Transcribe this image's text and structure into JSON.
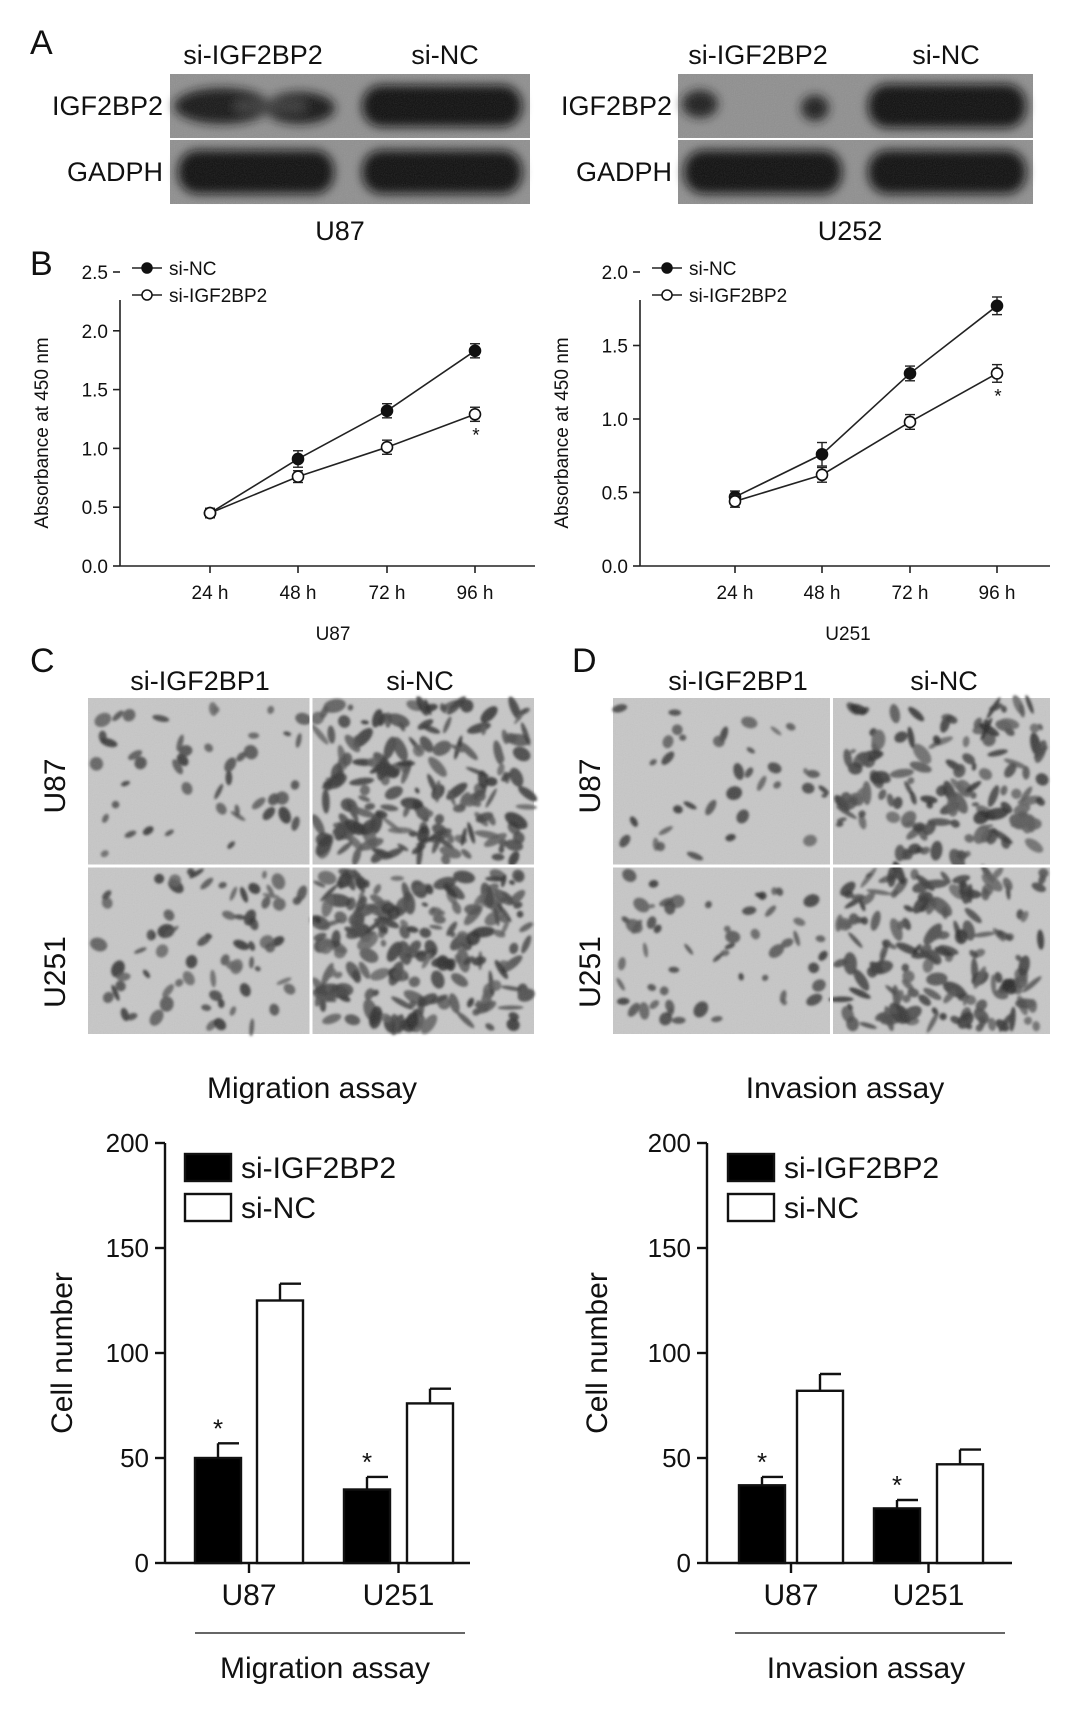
{
  "panel_labels": {
    "a": "A",
    "b": "B",
    "c": "C",
    "d": "D"
  },
  "panel_a": {
    "blots": [
      {
        "cell_line": "U87",
        "lanes": [
          "si-IGF2BP2",
          "si-NC"
        ],
        "rows": [
          "IGF2BP2",
          "GADPH"
        ]
      },
      {
        "cell_line": "U252",
        "lanes": [
          "si-IGF2BP2",
          "si-NC"
        ],
        "rows": [
          "IGF2BP2",
          "GADPH"
        ]
      }
    ]
  },
  "panel_cd": {
    "panels": [
      {
        "lanes": [
          "si-IGF2BP1",
          "si-NC"
        ],
        "rows": [
          "U87",
          "U251"
        ],
        "caption": "Invasion assay"
      }
    ]
  },
  "chart_data": [
    {
      "type": "line",
      "cell_line": "U87",
      "ylabel": "Absorbance at 450 nm",
      "x": [
        "24 h",
        "48 h",
        "72 h",
        "96 h"
      ],
      "ylim": [
        0,
        2.5
      ],
      "yticks": [
        "0.0",
        "0.5",
        "1.0",
        "1.5",
        "2.0",
        "2.5"
      ],
      "series": [
        {
          "name": "si-NC",
          "marker": "filled",
          "values": [
            0.45,
            0.91,
            1.32,
            1.83
          ],
          "errors": [
            0.04,
            0.07,
            0.06,
            0.06
          ]
        },
        {
          "name": "si-IGF2BP2",
          "marker": "open",
          "values": [
            0.45,
            0.76,
            1.01,
            1.29
          ],
          "errors": [
            0.04,
            0.05,
            0.06,
            0.06
          ]
        }
      ],
      "annotation": "*"
    },
    {
      "type": "line",
      "cell_line": "U251",
      "ylabel": "Absorbance at 450 nm",
      "x": [
        "24 h",
        "48 h",
        "72 h",
        "96 h"
      ],
      "ylim": [
        0,
        2.0
      ],
      "yticks": [
        "0.0",
        "0.5",
        "1.0",
        "1.5",
        "2.0"
      ],
      "series": [
        {
          "name": "si-NC",
          "marker": "filled",
          "values": [
            0.47,
            0.76,
            1.31,
            1.77
          ],
          "errors": [
            0.04,
            0.08,
            0.05,
            0.06
          ]
        },
        {
          "name": "si-IGF2BP2",
          "marker": "open",
          "values": [
            0.44,
            0.62,
            0.98,
            1.31
          ],
          "errors": [
            0.04,
            0.05,
            0.05,
            0.06
          ]
        }
      ],
      "annotation": "*"
    },
    {
      "type": "bar",
      "ylabel": "Cell number",
      "categories": [
        "U87",
        "U251"
      ],
      "group_label": "Migration assay",
      "ylim": [
        0,
        200
      ],
      "yticks": [
        "0",
        "50",
        "100",
        "150",
        "200"
      ],
      "series": [
        {
          "name": "si-IGF2BP2",
          "fill": "#000000",
          "values": [
            50,
            35
          ],
          "errors": [
            7,
            6
          ],
          "annotation": "*"
        },
        {
          "name": "si-NC",
          "fill": "#ffffff",
          "values": [
            125,
            76
          ],
          "errors": [
            8,
            7
          ]
        }
      ]
    },
    {
      "type": "bar",
      "ylabel": "Cell number",
      "categories": [
        "U87",
        "U251"
      ],
      "group_label": "Invasion assay",
      "ylim": [
        0,
        200
      ],
      "yticks": [
        "0",
        "50",
        "100",
        "150",
        "200"
      ],
      "series": [
        {
          "name": "si-IGF2BP2",
          "fill": "#000000",
          "values": [
            37,
            26
          ],
          "errors": [
            4,
            4
          ],
          "annotation": "*"
        },
        {
          "name": "si-NC",
          "fill": "#ffffff",
          "values": [
            82,
            47
          ],
          "errors": [
            8,
            7
          ]
        }
      ]
    }
  ]
}
